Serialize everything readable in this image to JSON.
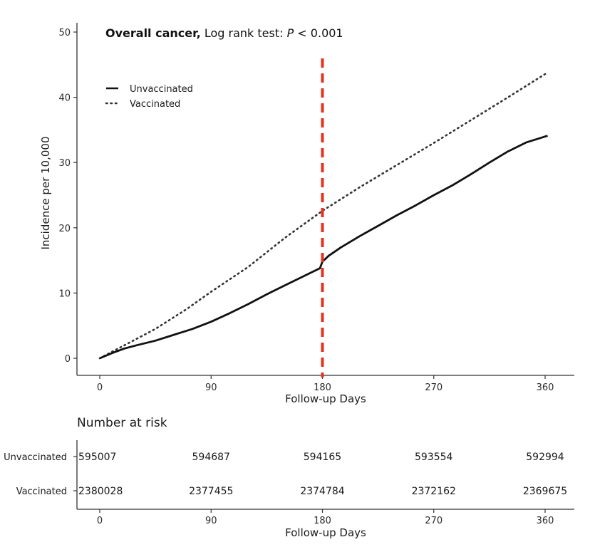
{
  "chart_data": {
    "type": "line",
    "title": {
      "bold": "Overall cancer,",
      "rest": " Log rank test: ",
      "p_symbol": "P",
      "p_value": " < 0.001"
    },
    "xlabel": "Follow-up Days",
    "ylabel": "Incidence per 10,000",
    "xlim": [
      -10,
      372
    ],
    "ylim": [
      -2,
      51
    ],
    "x_ticks": [
      0,
      90,
      180,
      270,
      360
    ],
    "y_ticks": [
      0,
      10,
      20,
      30,
      40,
      50
    ],
    "grid": false,
    "legend_position": "top-left",
    "reference_line": {
      "x": 180,
      "color": "#e3341f",
      "style": "dashed"
    },
    "series": [
      {
        "name": "Unvaccinated",
        "style": "solid",
        "color": "#111111",
        "x": [
          0,
          10,
          20,
          30,
          45,
          60,
          75,
          90,
          105,
          120,
          135,
          150,
          165,
          178,
          180,
          185,
          195,
          210,
          225,
          240,
          255,
          270,
          285,
          300,
          315,
          330,
          345,
          362
        ],
        "y": [
          0,
          0.8,
          1.5,
          2.0,
          2.7,
          3.6,
          4.5,
          5.6,
          6.9,
          8.3,
          9.8,
          11.2,
          12.6,
          13.8,
          14.8,
          15.7,
          17.0,
          18.7,
          20.3,
          21.9,
          23.4,
          25.0,
          26.5,
          28.2,
          30.0,
          31.7,
          33.1,
          34.1
        ]
      },
      {
        "name": "Vaccinated",
        "style": "dotted",
        "color": "#333333",
        "x": [
          0,
          20,
          45,
          70,
          90,
          120,
          150,
          180,
          210,
          240,
          270,
          300,
          330,
          362
        ],
        "y": [
          0,
          2.0,
          4.5,
          7.5,
          10.2,
          14.0,
          18.5,
          22.6,
          26.2,
          29.6,
          33.0,
          36.5,
          40.0,
          43.8
        ]
      }
    ]
  },
  "risk_table": {
    "title": "Number at risk",
    "xlabel": "Follow-up Days",
    "x_ticks": [
      0,
      90,
      180,
      270,
      360
    ],
    "rows": [
      {
        "label": "Unvaccinated",
        "values": [
          "595007",
          "594687",
          "594165",
          "593554",
          "592994"
        ]
      },
      {
        "label": "Vaccinated",
        "values": [
          "2380028",
          "2377455",
          "2374784",
          "2372162",
          "2369675"
        ]
      }
    ]
  }
}
